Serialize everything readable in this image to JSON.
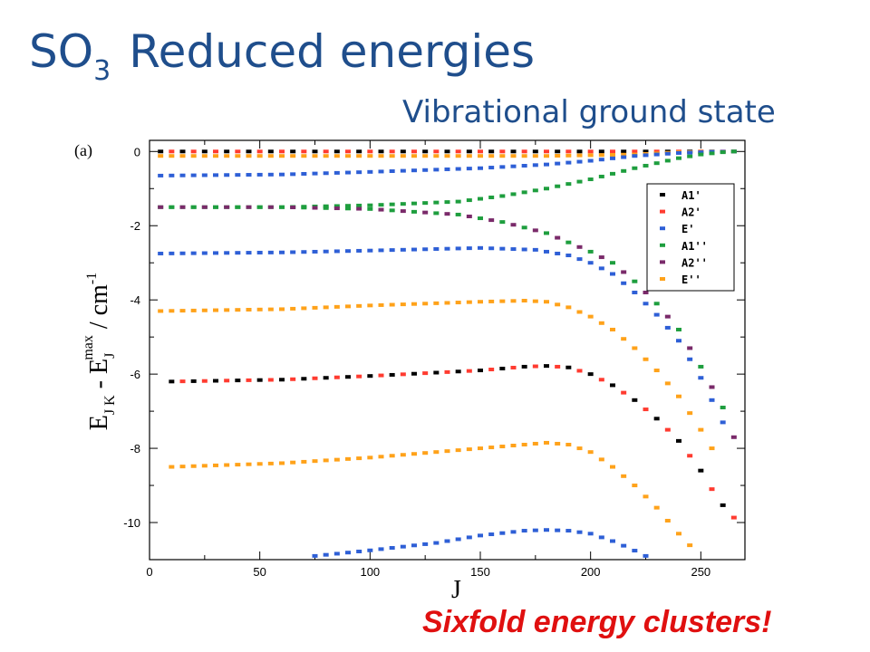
{
  "slide": {
    "title_main": "SO",
    "title_sub": "3",
    "title_rest": "Reduced energies",
    "subtitle": "Vibrational ground state",
    "callout": "Sixfold energy clusters!"
  },
  "chart_data": {
    "type": "scatter",
    "panel_label": "(a)",
    "xlabel": "J",
    "ylabel": "E_JK - E_J^max / cm^-1",
    "xlim": [
      0,
      270
    ],
    "ylim": [
      -11,
      0.3
    ],
    "xticks": [
      0,
      50,
      100,
      150,
      200,
      250
    ],
    "yticks": [
      0,
      -2,
      -4,
      -6,
      -8,
      -10
    ],
    "legend_position": "top-right",
    "series": [
      {
        "name": "A1'",
        "color": "#000000"
      },
      {
        "name": "A2'",
        "color": "#ff3b30"
      },
      {
        "name": "E'",
        "color": "#2e5fd6"
      },
      {
        "name": "A1''",
        "color": "#1e9e3e"
      },
      {
        "name": "A2''",
        "color": "#7a2a6a"
      },
      {
        "name": "E''",
        "color": "#ffa21a"
      }
    ],
    "clusters": [
      {
        "x": [
          5,
          100,
          180,
          210,
          240,
          265
        ],
        "y": [
          0.0,
          0.0,
          0.0,
          0.0,
          0.0,
          0.0
        ],
        "series": [
          "A1'",
          "A2'"
        ]
      },
      {
        "x": [
          5,
          100,
          180,
          220,
          240,
          265
        ],
        "y": [
          -0.12,
          -0.12,
          -0.12,
          -0.08,
          -0.02,
          0.0
        ],
        "series": [
          "E''"
        ]
      },
      {
        "x": [
          5,
          60,
          100,
          150,
          180,
          200,
          220,
          240,
          255,
          265
        ],
        "y": [
          -0.65,
          -0.62,
          -0.55,
          -0.45,
          -0.35,
          -0.25,
          -0.12,
          -0.04,
          -0.01,
          0.0
        ],
        "series": [
          "E'"
        ]
      },
      {
        "x": [
          5,
          60,
          100,
          140,
          160,
          180,
          200,
          220,
          240,
          250,
          260,
          265
        ],
        "y": [
          -1.5,
          -1.5,
          -1.45,
          -1.35,
          -1.2,
          -1.0,
          -0.75,
          -0.45,
          -0.18,
          -0.08,
          -0.02,
          0.0
        ],
        "series": [
          "A1''"
        ]
      },
      {
        "x": [
          5,
          60,
          100,
          140,
          160,
          180,
          200,
          210,
          220,
          230,
          240,
          250,
          260,
          265
        ],
        "y": [
          -1.5,
          -1.5,
          -1.55,
          -1.7,
          -1.9,
          -2.2,
          -2.7,
          -3.0,
          -3.5,
          -4.1,
          -4.8,
          -5.8,
          -6.9,
          -7.7
        ],
        "series": [
          "A2''",
          "A1''"
        ]
      },
      {
        "x": [
          5,
          60,
          100,
          150,
          175,
          190,
          200,
          210,
          220,
          230,
          240,
          250,
          260
        ],
        "y": [
          -2.75,
          -2.72,
          -2.67,
          -2.6,
          -2.65,
          -2.8,
          -3.0,
          -3.3,
          -3.8,
          -4.4,
          -5.1,
          -6.1,
          -7.3
        ],
        "series": [
          "E'"
        ]
      },
      {
        "x": [
          5,
          60,
          100,
          150,
          170,
          180,
          190,
          200,
          210,
          220,
          230,
          240,
          250,
          258
        ],
        "y": [
          -4.3,
          -4.25,
          -4.15,
          -4.05,
          -4.02,
          -4.05,
          -4.2,
          -4.45,
          -4.8,
          -5.3,
          -5.9,
          -6.6,
          -7.5,
          -8.3
        ],
        "series": [
          "E''"
        ]
      },
      {
        "x": [
          10,
          60,
          100,
          150,
          170,
          180,
          190,
          200,
          210,
          220,
          230,
          240,
          250,
          258,
          267
        ],
        "y": [
          -6.2,
          -6.15,
          -6.05,
          -5.9,
          -5.8,
          -5.78,
          -5.82,
          -6.0,
          -6.3,
          -6.7,
          -7.2,
          -7.8,
          -8.6,
          -9.4,
          -10.0
        ],
        "series": [
          "A1'",
          "A2'"
        ]
      },
      {
        "x": [
          10,
          60,
          100,
          150,
          170,
          180,
          190,
          200,
          210,
          220,
          230,
          240,
          248
        ],
        "y": [
          -8.5,
          -8.4,
          -8.25,
          -8.0,
          -7.9,
          -7.85,
          -7.9,
          -8.1,
          -8.5,
          -9.0,
          -9.6,
          -10.3,
          -10.8
        ],
        "series": [
          "E''"
        ]
      },
      {
        "x": [
          75,
          100,
          130,
          150,
          170,
          180,
          190,
          200,
          210,
          218,
          225
        ],
        "y": [
          -10.9,
          -10.75,
          -10.55,
          -10.35,
          -10.22,
          -10.2,
          -10.22,
          -10.3,
          -10.5,
          -10.7,
          -10.9
        ],
        "series": [
          "E'"
        ]
      }
    ]
  }
}
